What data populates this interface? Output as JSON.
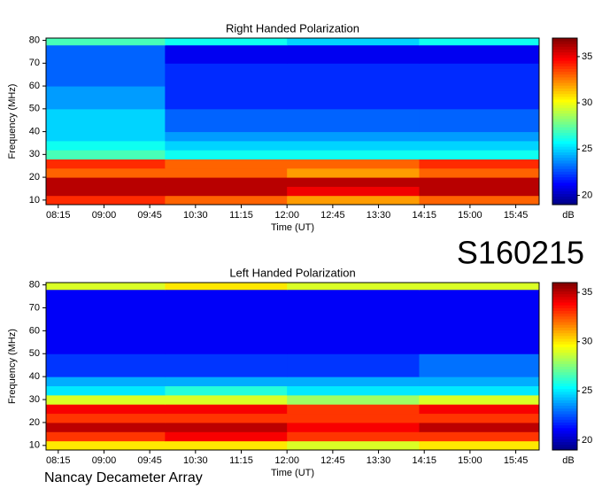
{
  "chart_data": [
    {
      "type": "heatmap",
      "title": "Right Handed Polarization",
      "x_label": "Time (UT)",
      "y_label": "Frequency (MHz)",
      "z_label": "dB",
      "colormap": "jet",
      "xlim": [
        483,
        968
      ],
      "ylim": [
        8,
        81
      ],
      "zlim": [
        19,
        37
      ],
      "xticks": [
        {
          "value": 495,
          "label": "08:15"
        },
        {
          "value": 540,
          "label": "09:00"
        },
        {
          "value": 585,
          "label": "09:45"
        },
        {
          "value": 630,
          "label": "10:30"
        },
        {
          "value": 675,
          "label": "11:15"
        },
        {
          "value": 720,
          "label": "12:00"
        },
        {
          "value": 765,
          "label": "12:45"
        },
        {
          "value": 810,
          "label": "13:30"
        },
        {
          "value": 855,
          "label": "14:15"
        },
        {
          "value": 900,
          "label": "15:00"
        },
        {
          "value": 945,
          "label": "15:45"
        }
      ],
      "yticks": [
        10,
        20,
        30,
        40,
        50,
        60,
        70,
        80
      ],
      "zticks": [
        20,
        25,
        30,
        35
      ],
      "x_edges": [
        483,
        600,
        720,
        850,
        968
      ],
      "y_edges": [
        8,
        12,
        16,
        20,
        24,
        28,
        32,
        36,
        40,
        50,
        60,
        70,
        78,
        81
      ],
      "z": [
        [
          34,
          33,
          32,
          33
        ],
        [
          36,
          36,
          35,
          36
        ],
        [
          36,
          36,
          36,
          36
        ],
        [
          33,
          33,
          32,
          33
        ],
        [
          34,
          33,
          33,
          34
        ],
        [
          27,
          26,
          26,
          26
        ],
        [
          26,
          25,
          25,
          25
        ],
        [
          25,
          24,
          24,
          24
        ],
        [
          25,
          23,
          23,
          23
        ],
        [
          24,
          22,
          22,
          22
        ],
        [
          23,
          22,
          22,
          22
        ],
        [
          23,
          21,
          21,
          21
        ],
        [
          27,
          26,
          25,
          26
        ]
      ]
    },
    {
      "type": "heatmap",
      "title": "Left Handed Polarization",
      "x_label": "Time (UT)",
      "y_label": "Frequency (MHz)",
      "z_label": "dB",
      "colormap": "jet",
      "xlim": [
        483,
        968
      ],
      "ylim": [
        8,
        81
      ],
      "zlim": [
        19,
        36
      ],
      "xticks": [
        {
          "value": 495,
          "label": "08:15"
        },
        {
          "value": 540,
          "label": "09:00"
        },
        {
          "value": 585,
          "label": "09:45"
        },
        {
          "value": 630,
          "label": "10:30"
        },
        {
          "value": 675,
          "label": "11:15"
        },
        {
          "value": 720,
          "label": "12:00"
        },
        {
          "value": 765,
          "label": "12:45"
        },
        {
          "value": 810,
          "label": "13:30"
        },
        {
          "value": 855,
          "label": "14:15"
        },
        {
          "value": 900,
          "label": "15:00"
        },
        {
          "value": 945,
          "label": "15:45"
        }
      ],
      "yticks": [
        10,
        20,
        30,
        40,
        50,
        60,
        70,
        80
      ],
      "zticks": [
        20,
        25,
        30,
        35
      ],
      "x_edges": [
        483,
        600,
        720,
        850,
        968
      ],
      "y_edges": [
        8,
        12,
        16,
        20,
        24,
        28,
        32,
        36,
        40,
        50,
        60,
        70,
        78,
        81
      ],
      "z": [
        [
          30,
          30,
          29,
          30
        ],
        [
          33,
          34,
          33,
          33
        ],
        [
          35,
          35,
          34,
          35
        ],
        [
          33,
          33,
          33,
          33
        ],
        [
          34,
          34,
          33,
          34
        ],
        [
          29,
          29,
          28,
          29
        ],
        [
          25,
          26,
          25,
          25
        ],
        [
          24,
          24,
          24,
          24
        ],
        [
          22,
          22,
          22,
          23
        ],
        [
          21,
          21,
          21,
          21
        ],
        [
          21,
          21,
          21,
          21
        ],
        [
          21,
          21,
          21,
          21
        ],
        [
          29,
          30,
          29,
          29
        ]
      ]
    }
  ],
  "label": "S160215",
  "footer": "Nancay Decameter Array"
}
